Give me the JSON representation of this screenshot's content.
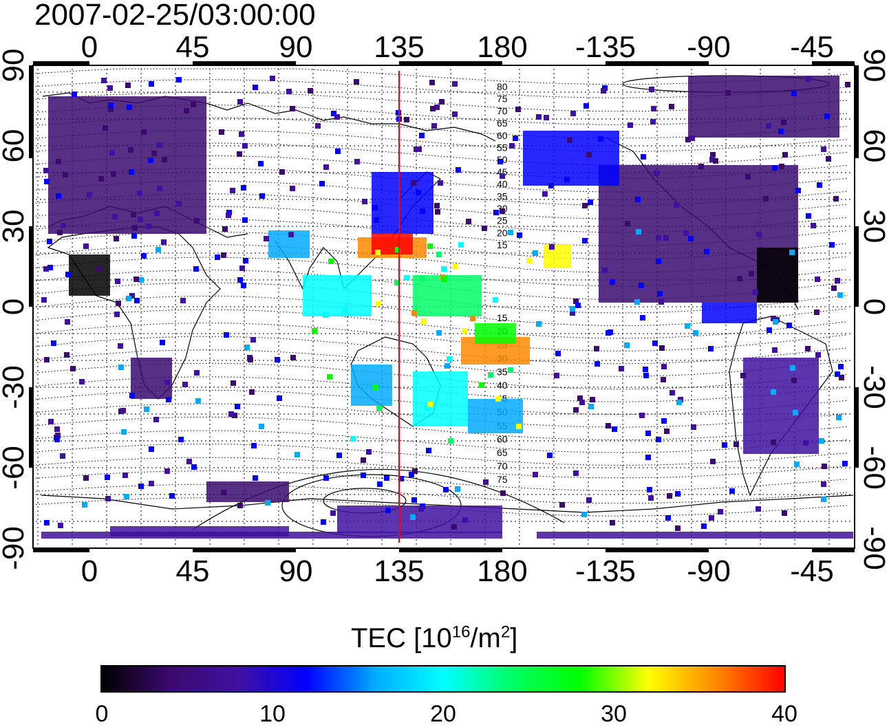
{
  "title": "2007-02-25/03:00:00",
  "map": {
    "top_lon_labels": [
      "0",
      "45",
      "90",
      "135",
      "180",
      "-135",
      "-90",
      "-45"
    ],
    "bottom_lon_labels": [
      "0",
      "45",
      "90",
      "135",
      "180",
      "-135",
      "-90",
      "-45"
    ],
    "lat_labels": [
      "90",
      "60",
      "30",
      "0",
      "-30",
      "-60",
      "-90"
    ],
    "marker_longitude": 135,
    "marker_color": "#ff0000",
    "contour_labels_north": [
      "80",
      "75",
      "70",
      "65",
      "60",
      "55",
      "50",
      "45",
      "40",
      "35",
      "30",
      "25",
      "20",
      "15"
    ],
    "contour_labels_south": [
      "15",
      "20",
      "25",
      "30",
      "35",
      "40",
      "45",
      "50",
      "55",
      "60",
      "65",
      "70",
      "75"
    ]
  },
  "colorbar": {
    "title_prefix": "TEC  [10",
    "title_exp1": "16",
    "title_mid": "/m",
    "title_exp2": "2",
    "title_suffix": "]",
    "ticks": [
      "0",
      "10",
      "20",
      "30",
      "40"
    ],
    "min": 0,
    "max": 40,
    "colors": [
      "#000000",
      "#3a0a6e",
      "#4010a0",
      "#0000ff",
      "#00aaff",
      "#00ffff",
      "#00ff66",
      "#00ff00",
      "#ffff00",
      "#ff8800",
      "#ff0000"
    ]
  }
}
